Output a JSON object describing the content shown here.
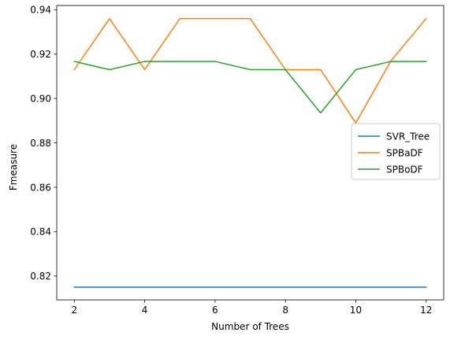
{
  "chart_data": {
    "type": "line",
    "title": "",
    "xlabel": "Number of Trees",
    "ylabel": "Fmeasure",
    "x": [
      2,
      3,
      4,
      5,
      6,
      7,
      8,
      9,
      10,
      11,
      12
    ],
    "xlim": [
      1.5,
      12.5
    ],
    "ylim": [
      0.8093,
      0.9419
    ],
    "xticks": [
      2,
      4,
      6,
      8,
      10,
      12
    ],
    "xtick_labels": [
      "2",
      "4",
      "6",
      "8",
      "10",
      "12"
    ],
    "yticks": [
      0.82,
      0.84,
      0.86,
      0.88,
      0.9,
      0.92,
      0.94
    ],
    "ytick_labels": [
      "0.82",
      "0.84",
      "0.86",
      "0.88",
      "0.90",
      "0.92",
      "0.94"
    ],
    "grid": false,
    "legend_position": "center-right",
    "series": [
      {
        "name": "SVR_Tree",
        "color": "#1f77b4",
        "values": [
          0.815,
          0.815,
          0.815,
          0.815,
          0.815,
          0.815,
          0.815,
          0.815,
          0.815,
          0.815,
          0.815
        ]
      },
      {
        "name": "SPBaDF",
        "color": "#ff7f0e",
        "values": [
          0.913,
          0.936,
          0.913,
          0.936,
          0.936,
          0.936,
          0.913,
          0.913,
          0.889,
          0.917,
          0.936
        ]
      },
      {
        "name": "SPBoDF",
        "color": "#2ca02c",
        "values": [
          0.9167,
          0.913,
          0.9167,
          0.9167,
          0.9167,
          0.913,
          0.913,
          0.8935,
          0.913,
          0.9167,
          0.9167
        ]
      }
    ]
  }
}
